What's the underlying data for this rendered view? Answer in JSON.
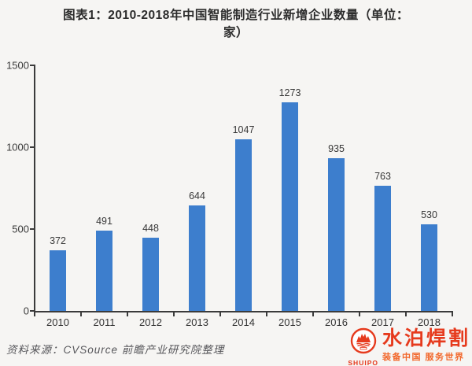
{
  "page": {
    "background": "#f6f5f3"
  },
  "header": {
    "title_lines": [
      "图表1：2010-2018年中国智能制造行业新增企业数量（单位：",
      "家）"
    ]
  },
  "chart_data": {
    "type": "bar",
    "title": "图表1：2010-2018年中国智能制造行业新增企业数量（单位：家）",
    "categories": [
      "2010",
      "2011",
      "2012",
      "2013",
      "2014",
      "2015",
      "2016",
      "2017",
      "2018"
    ],
    "values": [
      372,
      491,
      448,
      644,
      1047,
      1273,
      935,
      763,
      530
    ],
    "xlabel": "",
    "ylabel": "",
    "ylim": [
      0,
      1500
    ],
    "yticks": [
      0,
      500,
      1000,
      1500
    ],
    "grid": false,
    "legend_position": "none",
    "value_labels_shown": true,
    "bar_color": "#3d7ecd",
    "axis_color": "#3b3b3b"
  },
  "footer": {
    "source": "资料来源：CVSource 前瞻产业研究院整理"
  },
  "logo": {
    "name": "水泊焊割",
    "latin": "SHUIPO",
    "slogan": "装备中国 服务世界",
    "accent_color": "#e63a1d",
    "slogan_color": "#f2672b"
  }
}
